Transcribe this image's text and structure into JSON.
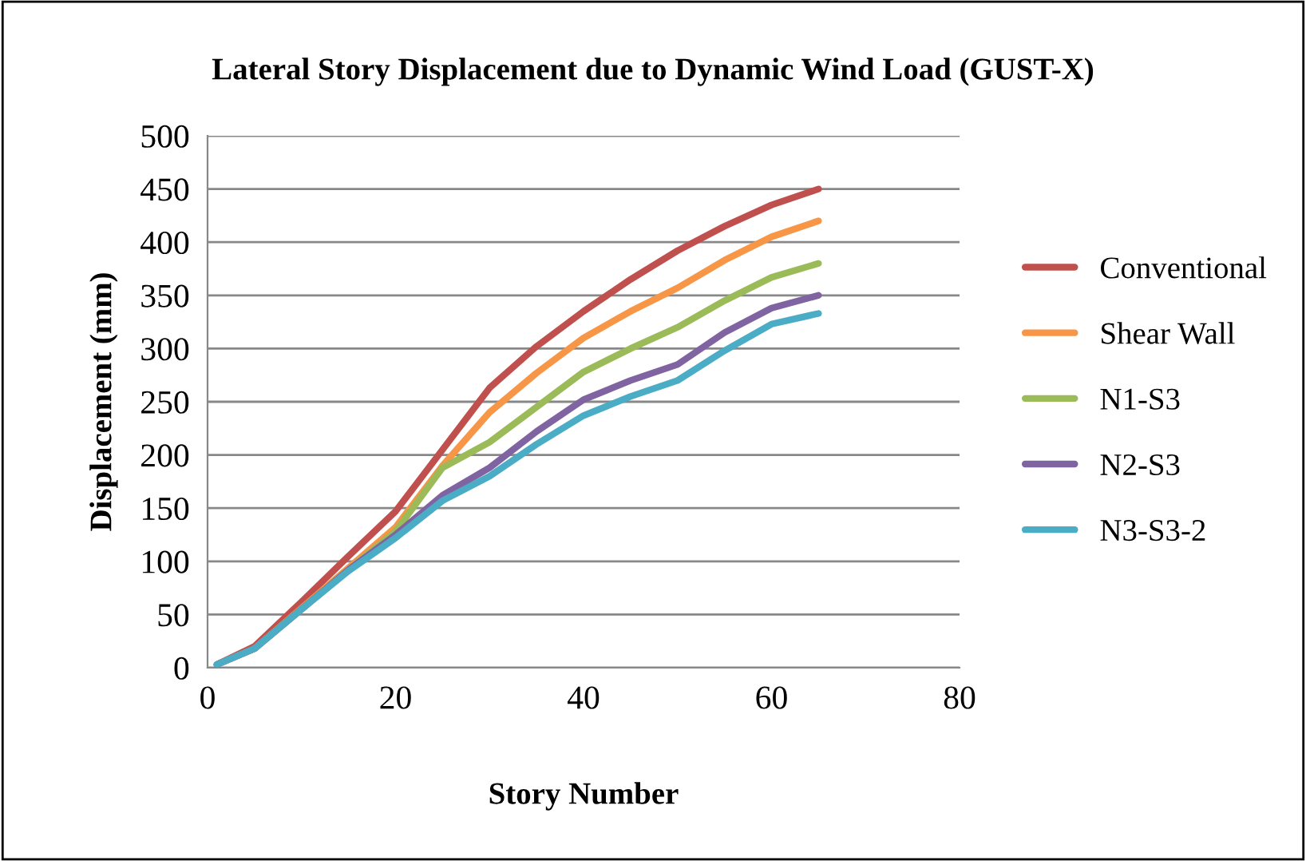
{
  "chart_data": {
    "type": "line",
    "title": "Lateral Story Displacement due to Dynamic Wind Load (GUST-X)",
    "xlabel": "Story Number",
    "ylabel": "Displacement (mm)",
    "xlim": [
      0,
      80
    ],
    "xticks": [
      0,
      20,
      40,
      60,
      80
    ],
    "ylim": [
      0,
      500
    ],
    "yticks": [
      0,
      50,
      100,
      150,
      200,
      250,
      300,
      350,
      400,
      450,
      500
    ],
    "grid": "y",
    "legend": "right",
    "marker": "none",
    "line_style": "solid",
    "x": [
      1,
      5,
      10,
      15,
      20,
      25,
      30,
      35,
      40,
      45,
      50,
      55,
      60,
      65
    ],
    "series": [
      {
        "name": "Conventional",
        "color": "#c0504d",
        "values": [
          3,
          20,
          62,
          105,
          147,
          205,
          263,
          302,
          335,
          365,
          392,
          415,
          435,
          450
        ]
      },
      {
        "name": "Shear Wall",
        "color": "#f79646",
        "values": [
          3,
          18,
          56,
          94,
          132,
          190,
          240,
          277,
          310,
          335,
          357,
          383,
          405,
          420
        ]
      },
      {
        "name": "N1-S3",
        "color": "#9bbb59",
        "values": [
          3,
          18,
          55,
          92,
          128,
          188,
          212,
          245,
          278,
          300,
          320,
          345,
          367,
          380
        ]
      },
      {
        "name": "N2-S3",
        "color": "#8064a2",
        "values": [
          3,
          18,
          55,
          92,
          125,
          162,
          188,
          222,
          252,
          270,
          285,
          315,
          338,
          350
        ]
      },
      {
        "name": "N3-S3-2",
        "color": "#4bacc6",
        "values": [
          3,
          18,
          55,
          91,
          122,
          157,
          180,
          210,
          237,
          255,
          270,
          298,
          323,
          333
        ]
      }
    ]
  }
}
